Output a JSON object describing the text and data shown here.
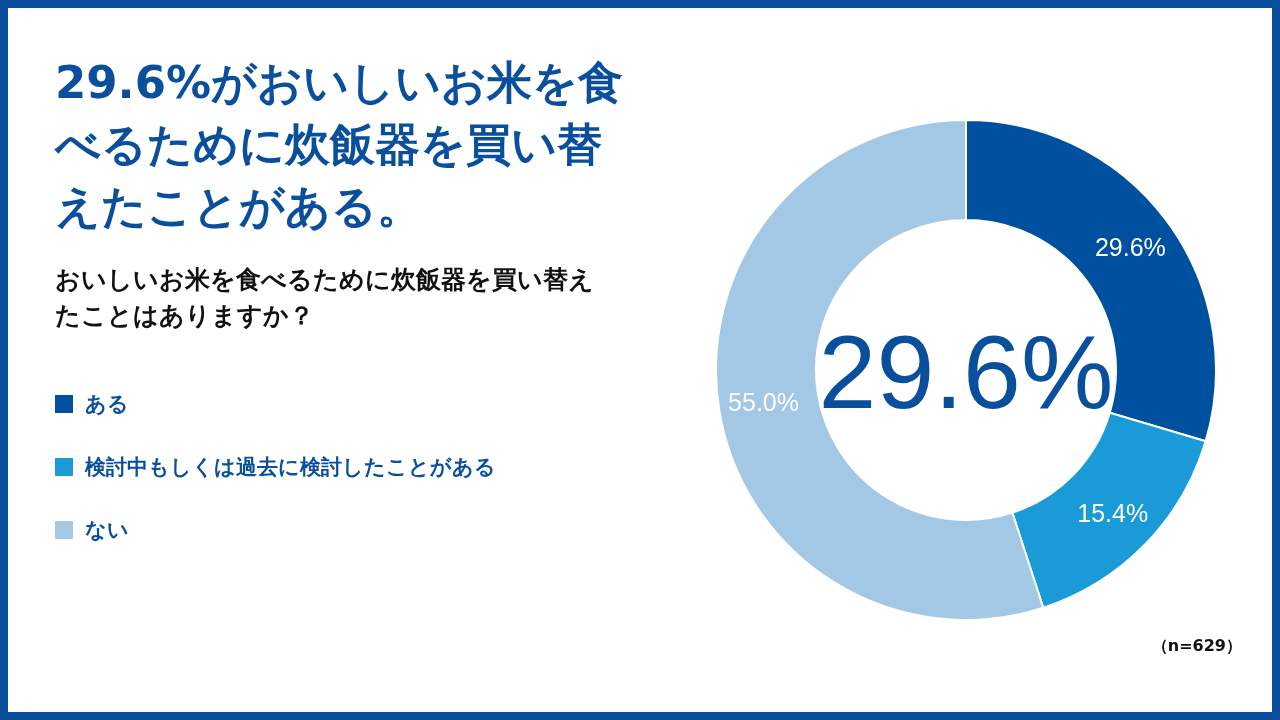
{
  "chart_data": {
    "type": "donut",
    "title": "29.6%がおいしいお米を食べるために炊飯器を買い替えたことがある。",
    "subtitle": "おいしいお米を食べるために炊飯器を買い替えたことはありますか？",
    "categories": [
      "ある",
      "検討中もしくは過去に検討したことがある",
      "ない"
    ],
    "values": [
      29.6,
      15.4,
      55.0
    ],
    "colors": [
      "#0050a0",
      "#1a9ad6",
      "#a3c8e6"
    ],
    "value_labels": [
      "29.6%",
      "15.4%",
      "55.0%"
    ],
    "legend": "left",
    "annotations": [
      "29.6%",
      "（n=629）"
    ]
  }
}
